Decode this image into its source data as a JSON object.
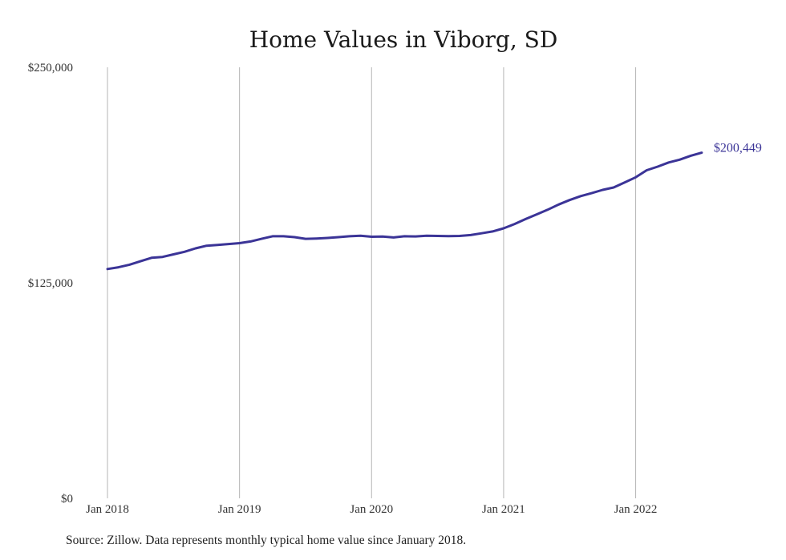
{
  "chart_data": {
    "type": "line",
    "title": "Home Values in Viborg, SD",
    "xlabel": "",
    "ylabel": "",
    "ylim": [
      0,
      250000
    ],
    "y_ticks": [
      {
        "value": 0,
        "label": "$0"
      },
      {
        "value": 125000,
        "label": "$125,000"
      },
      {
        "value": 250000,
        "label": "$250,000"
      }
    ],
    "x_ticks": [
      {
        "value": "2018-01",
        "label": "Jan 2018"
      },
      {
        "value": "2019-01",
        "label": "Jan 2019"
      },
      {
        "value": "2020-01",
        "label": "Jan 2020"
      },
      {
        "value": "2021-01",
        "label": "Jan 2021"
      },
      {
        "value": "2022-01",
        "label": "Jan 2022"
      }
    ],
    "grid": {
      "vertical": true,
      "horizontal": false
    },
    "legend": "none",
    "color": "#3b3497",
    "end_label": "$200,449",
    "series": [
      {
        "x": [
          "2018-01",
          "2018-02",
          "2018-03",
          "2018-04",
          "2018-05",
          "2018-06",
          "2018-07",
          "2018-08",
          "2018-09",
          "2018-10",
          "2018-11",
          "2018-12",
          "2019-01",
          "2019-02",
          "2019-03",
          "2019-04",
          "2019-05",
          "2019-06",
          "2019-07",
          "2019-08",
          "2019-09",
          "2019-10",
          "2019-11",
          "2019-12",
          "2020-01",
          "2020-02",
          "2020-03",
          "2020-04",
          "2020-05",
          "2020-06",
          "2020-07",
          "2020-08",
          "2020-09",
          "2020-10",
          "2020-11",
          "2020-12",
          "2021-01",
          "2021-02",
          "2021-03",
          "2021-04",
          "2021-05",
          "2021-06",
          "2021-07",
          "2021-08",
          "2021-09",
          "2021-10",
          "2021-11",
          "2021-12",
          "2022-01",
          "2022-02",
          "2022-03",
          "2022-04",
          "2022-05",
          "2022-06",
          "2022-07"
        ],
        "values": [
          133000,
          134000,
          135500,
          137500,
          139500,
          140000,
          141500,
          143000,
          145000,
          146500,
          147000,
          147500,
          148000,
          149000,
          150500,
          152000,
          152000,
          151500,
          150500,
          150700,
          151000,
          151500,
          152000,
          152300,
          151700,
          151800,
          151300,
          152000,
          151900,
          152300,
          152200,
          152100,
          152200,
          152700,
          153700,
          154800,
          156600,
          159100,
          162000,
          164700,
          167400,
          170400,
          173000,
          175300,
          177000,
          178900,
          180300,
          183200,
          186200,
          190300,
          192400,
          194800,
          196400,
          198700,
          200449
        ]
      }
    ]
  },
  "source": "Source: Zillow. Data represents monthly typical home value since January 2018."
}
